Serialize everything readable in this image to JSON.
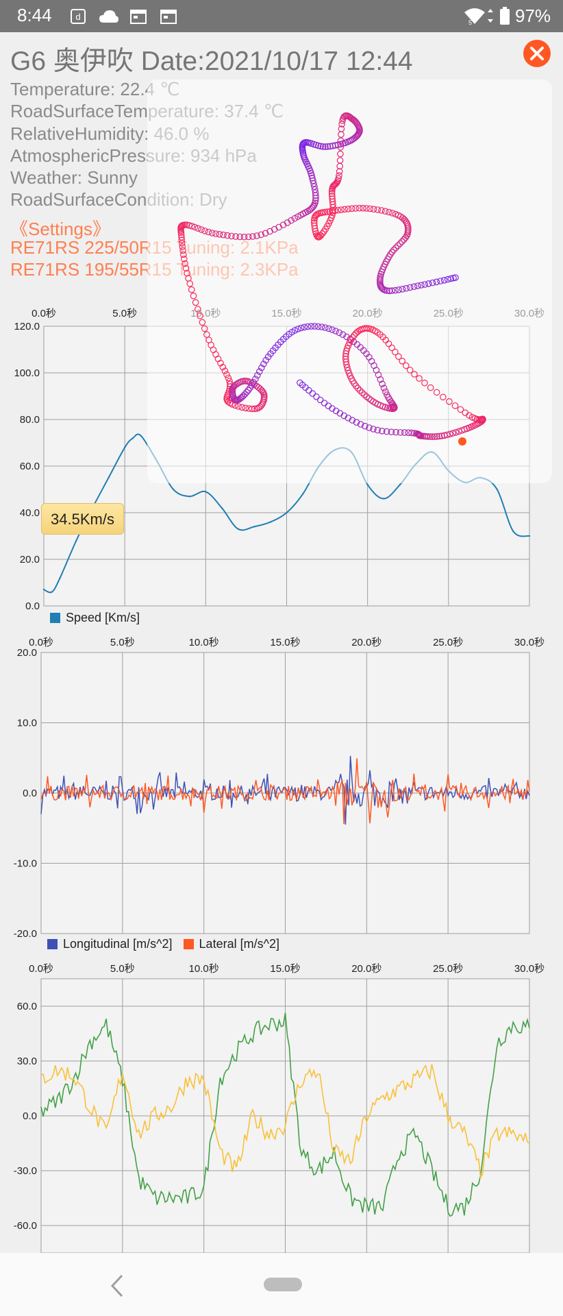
{
  "status_bar": {
    "time": "8:44",
    "battery": "97%",
    "icons": [
      "d-account-icon",
      "cloud-icon",
      "calendar-icon",
      "calendar-icon",
      "wifi-icon",
      "signal-icon",
      "battery-icon"
    ]
  },
  "header": {
    "title": "G6 奥伊吹 Date:2021/10/17 12:44"
  },
  "conditions": [
    "Temperature: 22.4 ℃",
    "RoadSurfaceTemperature: 37.4 ℃",
    "RelativeHumidity: 46.0 %",
    "AtmosphericPressure: 934 hPa",
    "Weather: Sunny",
    "RoadSurfaceCondition: Dry"
  ],
  "settings": {
    "label": "《Settings》",
    "tires": [
      "RE71RS 225/50R15 Tuning: 2.1KPa",
      "RE71RS 195/55R15 Tuning: 2.3KPa"
    ]
  },
  "tooltip": "34.5Km/s",
  "colors": {
    "speed": "#1f7fb2",
    "speed_highlight": "#86c5e0",
    "longitudinal": "#3f51b5",
    "lateral": "#ff5722",
    "green": "#43a047",
    "yellow": "#f9c038",
    "accent": "#ff5722"
  },
  "chart_data": [
    {
      "type": "line",
      "x_ticks": [
        "0.0秒",
        "5.0秒",
        "10.0秒",
        "15.0秒",
        "20.0秒",
        "25.0秒",
        "30.0秒"
      ],
      "y_ticks": [
        "120.0",
        "100.0",
        "80.0",
        "60.0",
        "40.0",
        "20.0",
        "0.0"
      ],
      "ylim": [
        0,
        120
      ],
      "xlim": [
        0,
        30
      ],
      "series": [
        {
          "name": "Speed [Km/s]",
          "x": [
            0,
            0.5,
            1,
            2,
            3,
            4,
            5,
            5.5,
            6,
            7,
            8,
            9,
            10,
            11,
            12,
            13,
            14,
            15,
            16,
            17,
            18,
            19,
            20,
            21,
            22,
            23,
            24,
            25,
            26,
            27,
            28,
            29,
            30
          ],
          "y": [
            7,
            6,
            12,
            28,
            42,
            55,
            68,
            72,
            73,
            62,
            50,
            47,
            49,
            42,
            33,
            34,
            36,
            40,
            48,
            60,
            67,
            66,
            52,
            46,
            52,
            61,
            66,
            58,
            53,
            55,
            50,
            32,
            30
          ]
        }
      ]
    },
    {
      "type": "line",
      "x_ticks": [
        "0.0秒",
        "5.0秒",
        "10.0秒",
        "15.0秒",
        "20.0秒",
        "25.0秒",
        "30.0秒"
      ],
      "y_ticks": [
        "20.0",
        "10.0",
        "0.0",
        "-10.0",
        "-20.0"
      ],
      "ylim": [
        -20,
        20
      ],
      "xlim": [
        0,
        30
      ],
      "series": [
        {
          "name": "Longitudinal [m/s^2]"
        },
        {
          "name": "Lateral [m/s^2]"
        }
      ]
    },
    {
      "type": "line",
      "x_ticks": [
        "0.0秒",
        "5.0秒",
        "10.0秒",
        "15.0秒",
        "20.0秒",
        "25.0秒",
        "30.0秒"
      ],
      "y_ticks": [
        "60.0",
        "30.0",
        "0.0",
        "-30.0",
        "-60.0"
      ],
      "ylim": [
        -75,
        75
      ],
      "xlim": [
        0,
        30
      ],
      "series": [
        {
          "x": [
            0,
            1,
            2,
            3,
            4,
            5,
            6,
            7,
            8,
            9,
            10,
            11,
            12,
            13,
            14,
            15,
            16,
            17,
            18,
            19,
            20,
            21,
            22,
            23,
            24,
            25,
            26,
            27,
            28,
            29,
            30
          ],
          "y": [
            2,
            8,
            20,
            40,
            50,
            20,
            -35,
            -45,
            -45,
            -45,
            -40,
            20,
            35,
            45,
            50,
            52,
            -20,
            -30,
            -20,
            -45,
            -50,
            -50,
            -20,
            -10,
            -30,
            -50,
            -50,
            -30,
            40,
            50,
            48
          ]
        },
        {
          "x": [
            0,
            1,
            2,
            3,
            4,
            5,
            6,
            7,
            8,
            9,
            10,
            11,
            12,
            13,
            14,
            15,
            16,
            17,
            18,
            19,
            20,
            21,
            22,
            23,
            24,
            25,
            26,
            27,
            28,
            29,
            30
          ],
          "y": [
            20,
            25,
            22,
            5,
            -10,
            25,
            -10,
            0,
            5,
            20,
            20,
            -20,
            -30,
            0,
            -10,
            -5,
            20,
            25,
            -20,
            -25,
            0,
            10,
            15,
            20,
            25,
            0,
            -10,
            -30,
            -10,
            -10,
            -15
          ]
        }
      ]
    }
  ]
}
